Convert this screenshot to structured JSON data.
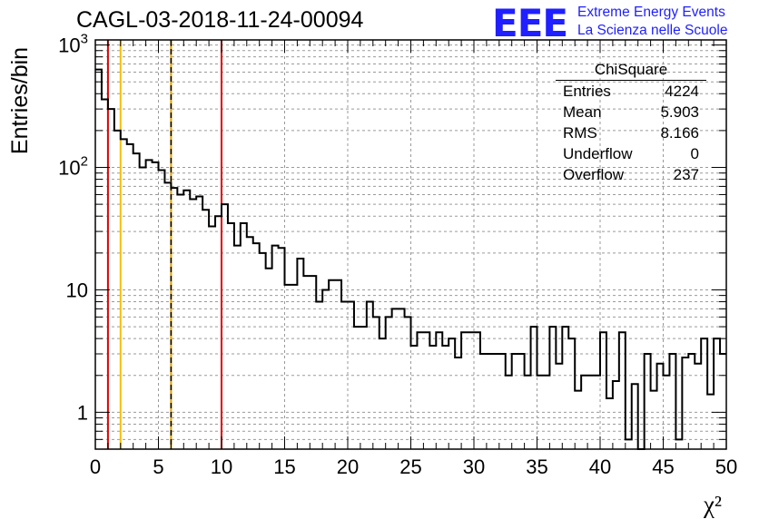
{
  "header": {
    "title": "CAGL-03-2018-11-24-00094"
  },
  "logo": {
    "mark": "EEE",
    "line1": "Extreme Energy Events",
    "line2": "La Scienza nelle Scuole",
    "color": "#1f1fff"
  },
  "stats_box": {
    "title": "ChiSquare",
    "rows": [
      {
        "label": "Entries",
        "value": "4224"
      },
      {
        "label": "Mean",
        "value": "5.903"
      },
      {
        "label": "RMS",
        "value": "8.166"
      },
      {
        "label": "Underflow",
        "value": "0"
      },
      {
        "label": "Overflow",
        "value": "237"
      }
    ]
  },
  "chart_data": {
    "type": "histogram",
    "title": "CAGL-03-2018-11-24-00094",
    "xlabel": "χ²",
    "ylabel": "Entries/bin",
    "xlim": [
      0,
      50
    ],
    "ylim": [
      0.5,
      1100
    ],
    "y_scale": "log",
    "grid": true,
    "x_ticks": [
      0,
      5,
      10,
      15,
      20,
      25,
      30,
      35,
      40,
      45,
      50
    ],
    "x_tick_labels": [
      "0",
      "5",
      "10",
      "15",
      "20",
      "25",
      "30",
      "35",
      "40",
      "45",
      "50"
    ],
    "y_ticks": [
      1,
      10,
      100,
      1000
    ],
    "y_tick_labels": [
      "1",
      "10",
      "10²",
      "10³"
    ],
    "bin_width": 0.5,
    "x_start": 0,
    "counts": [
      630,
      360,
      300,
      200,
      170,
      155,
      130,
      100,
      115,
      110,
      95,
      75,
      68,
      60,
      65,
      55,
      58,
      45,
      33,
      40,
      50,
      35,
      23,
      35,
      27,
      24,
      20,
      15,
      23,
      22,
      11,
      11,
      18,
      13,
      13,
      8,
      10,
      12,
      12,
      8,
      8,
      5,
      5,
      8,
      6,
      4,
      6,
      7,
      7,
      6,
      3.5,
      4.5,
      4.5,
      3.5,
      4.5,
      3.5,
      4,
      2.8,
      4.5,
      4.5,
      4.5,
      3,
      3,
      3,
      3,
      2,
      3,
      3,
      2,
      5,
      2,
      2,
      5,
      2.5,
      5,
      4,
      1.5,
      2,
      2,
      2,
      4.5,
      1.3,
      1.8,
      4.5,
      0.6,
      1.7,
      0.5,
      3,
      1.5,
      2.5,
      2,
      3,
      0.6,
      2.8,
      3,
      2.5,
      4,
      1.4,
      4,
      3
    ],
    "vertical_lines": [
      {
        "x": 1,
        "color": "#e00000",
        "style": "solid"
      },
      {
        "x": 2,
        "color": "#f5c000",
        "style": "solid"
      },
      {
        "x": 6,
        "color": "#e0a000",
        "style": "dashed-overlay"
      },
      {
        "x": 10,
        "color": "#e00000",
        "style": "solid"
      }
    ]
  }
}
